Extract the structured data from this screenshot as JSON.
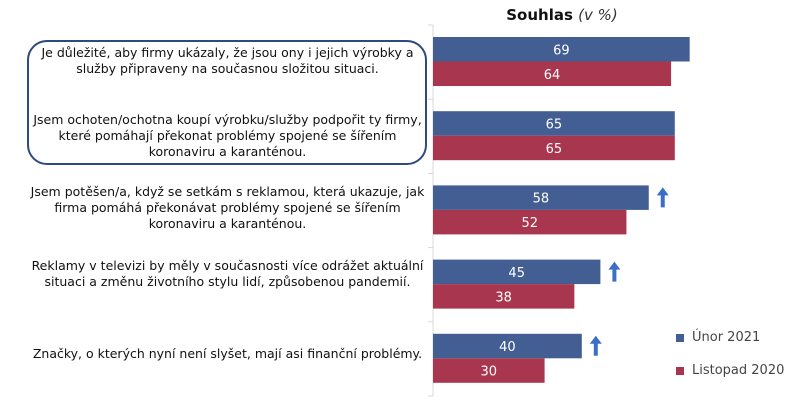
{
  "chart_data": {
    "type": "bar",
    "orientation": "horizontal",
    "title": "Souhlas",
    "title_suffix": "(v %)",
    "categories": [
      "Je důležité, aby firmy ukázaly, že jsou ony i jejich výrobky a služby připraveny na současnou složitou situaci.",
      "Jsem ochoten/ochotna koupí výrobku/služby podpořit ty firmy, které pomáhají překonat problémy spojené se šířením koronaviru a karanténou.",
      "Jsem potěšen/a, když se setkám s reklamou, která ukazuje, jak firma pomáhá překonávat problémy spojené se šířením koronaviru a karanténou.",
      "Reklamy v televizi by měly v současnosti více odrážet aktuální situaci a změnu životního stylu lidí, způsobenou pandemií.",
      "Značky, o kterých nyní není slyšet, mají asi finanční problémy."
    ],
    "series": [
      {
        "name": "Únor 2021",
        "color": "#435e93",
        "values": [
          69,
          65,
          58,
          45,
          40
        ]
      },
      {
        "name": "Listopad 2020",
        "color": "#a9364f",
        "values": [
          64,
          65,
          52,
          38,
          30
        ]
      }
    ],
    "increase_arrows": [
      false,
      false,
      true,
      true,
      true
    ],
    "arrow_color": "#3b6fc6",
    "highlighted_categories": [
      0,
      1
    ],
    "xlim": [
      0,
      100
    ],
    "legend_position": "right",
    "grid": false
  }
}
